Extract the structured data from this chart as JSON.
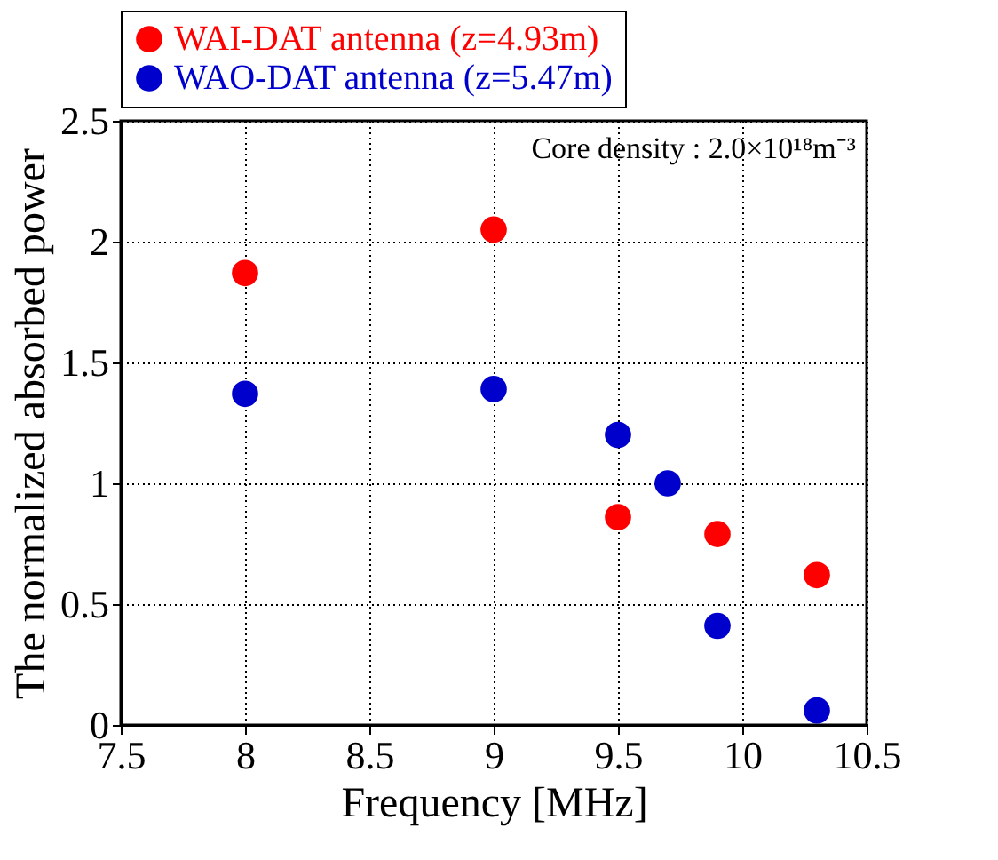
{
  "chart_data": {
    "type": "scatter",
    "xlabel": "Frequency [MHz]",
    "ylabel": "The normalized absorbed power",
    "annotations": [
      "Core density : 2.0×10¹⁸m⁻³"
    ],
    "series": [
      {
        "name": "WAI-DAT antenna (z=4.93m)",
        "color": "#ff0000",
        "x": [
          8,
          9,
          9.5,
          9.9,
          10.3
        ],
        "values": [
          1.87,
          2.05,
          0.86,
          0.79,
          0.62
        ]
      },
      {
        "name": "WAO-DAT antenna (z=5.47m)",
        "color": "#0000cc",
        "x": [
          8,
          9,
          9.5,
          9.7,
          9.9,
          10.3
        ],
        "values": [
          1.37,
          1.39,
          1.2,
          1.0,
          0.41,
          0.06
        ]
      }
    ],
    "xlim": [
      7.5,
      10.5
    ],
    "xticks": [
      7.5,
      8,
      8.5,
      9,
      9.5,
      10,
      10.5
    ],
    "ylim": [
      0,
      2.5
    ],
    "yticks": [
      0,
      0.5,
      1,
      1.5,
      2,
      2.5
    ],
    "grid": true,
    "legend": "top",
    "marker": "circle"
  }
}
